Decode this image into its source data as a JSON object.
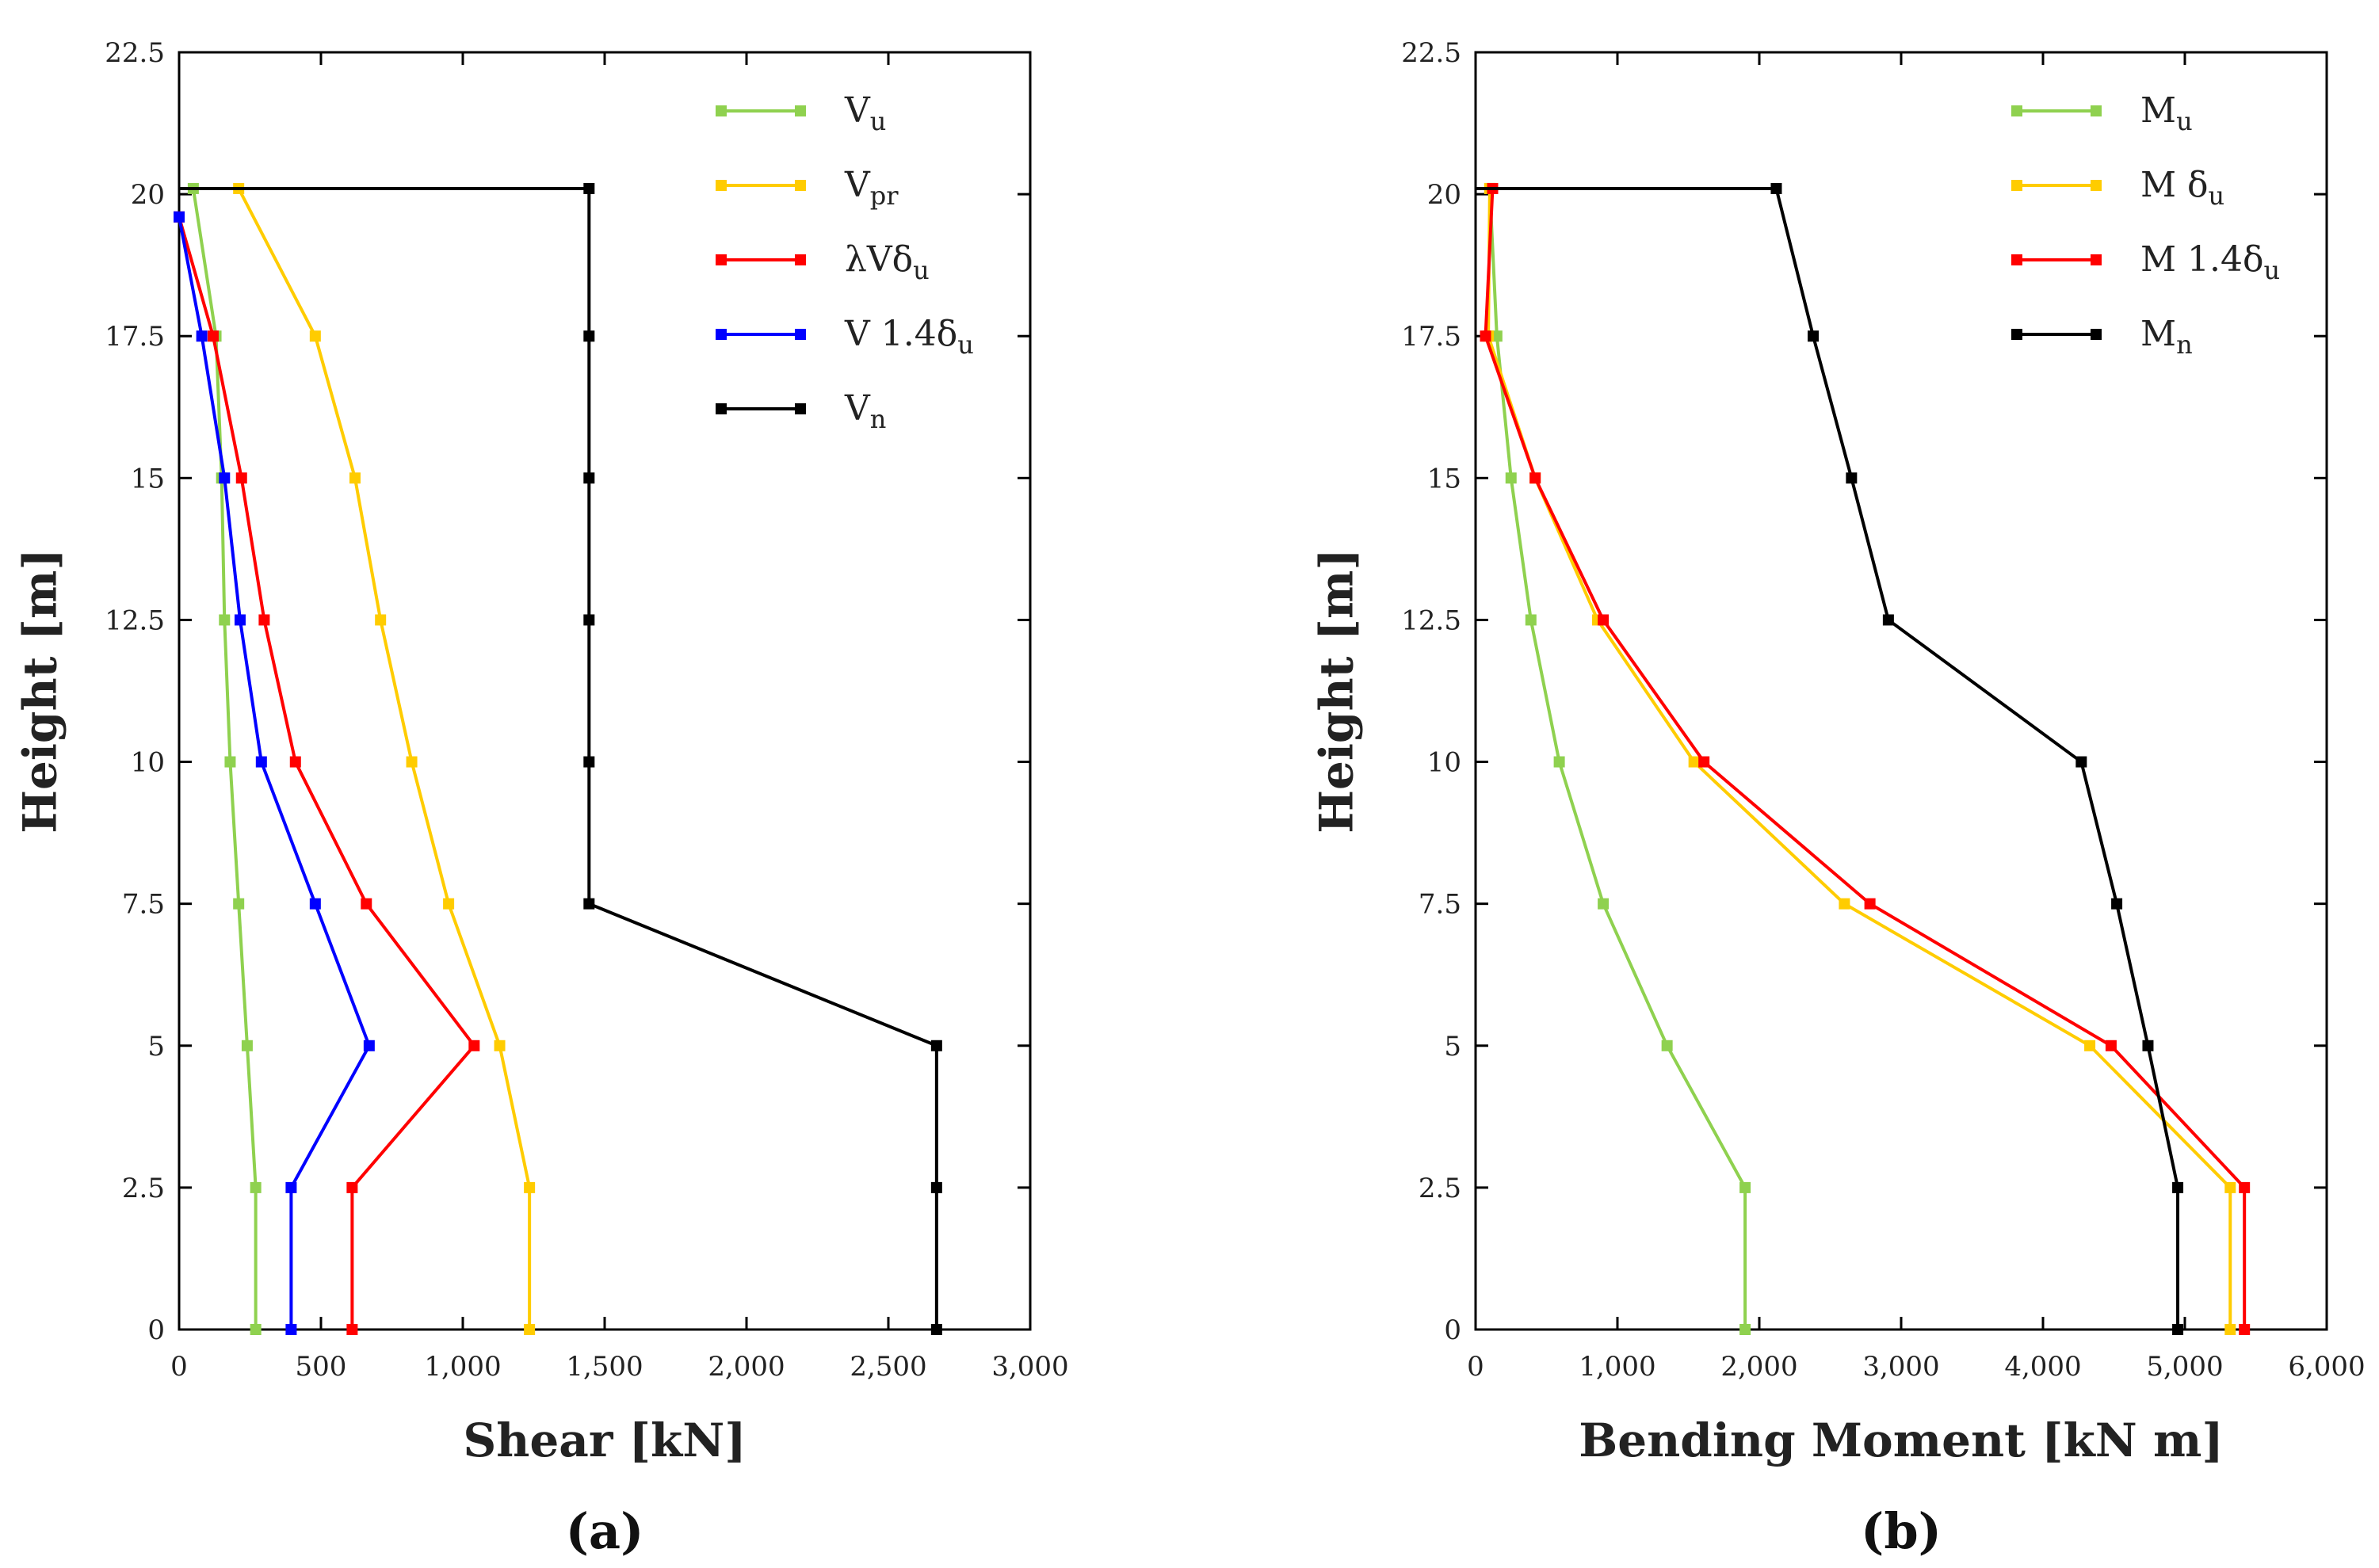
{
  "chart_data": [
    {
      "type": "line",
      "panel_label": "(a)",
      "xlabel": "Shear [kN]",
      "ylabel": "Height [m]",
      "xlim": [
        0,
        3000
      ],
      "ylim": [
        0,
        22.5
      ],
      "xticks": [
        0,
        500,
        1000,
        1500,
        2000,
        2500,
        3000
      ],
      "xtick_labels": [
        "0",
        "500",
        "1,000",
        "1,500",
        "2,000",
        "2,500",
        "3,000"
      ],
      "yticks": [
        0,
        2.5,
        5,
        7.5,
        10,
        12.5,
        15,
        17.5,
        20,
        22.5
      ],
      "ytick_labels": [
        "0",
        "2.5",
        "5",
        "7.5",
        "10",
        "12.5",
        "15",
        "17.5",
        "20",
        "22.5"
      ],
      "legend_position": "top-right",
      "grid": false,
      "series": [
        {
          "name": "Vu",
          "label_main": "V",
          "label_sub": "u",
          "color": "#8fd14f",
          "points": [
            [
              270,
              0
            ],
            [
              270,
              2.5
            ],
            [
              240,
              5
            ],
            [
              210,
              7.5
            ],
            [
              180,
              10
            ],
            [
              160,
              12.5
            ],
            [
              150,
              15
            ],
            [
              130,
              17.5
            ],
            [
              50,
              20.1
            ]
          ]
        },
        {
          "name": "Vpr",
          "label_main": "V",
          "label_sub": "pr",
          "color": "#ffcc00",
          "points": [
            [
              1235,
              0
            ],
            [
              1235,
              2.5
            ],
            [
              1130,
              5
            ],
            [
              950,
              7.5
            ],
            [
              820,
              10
            ],
            [
              710,
              12.5
            ],
            [
              620,
              15
            ],
            [
              480,
              17.5
            ],
            [
              210,
              20.1
            ]
          ]
        },
        {
          "name": "λVδu",
          "label_main": "λVδ",
          "label_sub": "u",
          "color": "#ff0000",
          "points": [
            [
              610,
              0
            ],
            [
              610,
              2.5
            ],
            [
              1040,
              5
            ],
            [
              660,
              7.5
            ],
            [
              410,
              10
            ],
            [
              300,
              12.5
            ],
            [
              220,
              15
            ],
            [
              120,
              17.5
            ],
            [
              0,
              19.6
            ]
          ]
        },
        {
          "name": "V 1.4δu",
          "label_main": "V 1.4δ",
          "label_sub": "u",
          "color": "#0000ff",
          "points": [
            [
              395,
              0
            ],
            [
              395,
              2.5
            ],
            [
              670,
              5
            ],
            [
              480,
              7.5
            ],
            [
              290,
              10
            ],
            [
              215,
              12.5
            ],
            [
              160,
              15
            ],
            [
              80,
              17.5
            ],
            [
              0,
              19.6
            ]
          ]
        },
        {
          "name": "Vn",
          "label_main": "V",
          "label_sub": "n",
          "color": "#000000",
          "points": [
            [
              2670,
              0
            ],
            [
              2670,
              2.5
            ],
            [
              2670,
              5
            ],
            [
              1445,
              7.5
            ],
            [
              1445,
              10
            ],
            [
              1445,
              12.5
            ],
            [
              1445,
              15
            ],
            [
              1445,
              17.5
            ],
            [
              1445,
              20.1
            ]
          ],
          "top_segment": [
            [
              0,
              20.1
            ],
            [
              1445,
              20.1
            ]
          ]
        }
      ]
    },
    {
      "type": "line",
      "panel_label": "(b)",
      "xlabel": "Bending Moment [kN m]",
      "ylabel": "Height [m]",
      "xlim": [
        0,
        6000
      ],
      "ylim": [
        0,
        22.5
      ],
      "xticks": [
        0,
        1000,
        2000,
        3000,
        4000,
        5000,
        6000
      ],
      "xtick_labels": [
        "0",
        "1,000",
        "2,000",
        "3,000",
        "4,000",
        "5,000",
        "6,000"
      ],
      "yticks": [
        0,
        2.5,
        5,
        7.5,
        10,
        12.5,
        15,
        17.5,
        20,
        22.5
      ],
      "ytick_labels": [
        "0",
        "2.5",
        "5",
        "7.5",
        "10",
        "12.5",
        "15",
        "17.5",
        "20",
        "22.5"
      ],
      "legend_position": "top-right",
      "grid": false,
      "series": [
        {
          "name": "Mu",
          "label_main": "M",
          "label_sub": "u",
          "color": "#8fd14f",
          "points": [
            [
              1900,
              0
            ],
            [
              1900,
              2.5
            ],
            [
              1350,
              5
            ],
            [
              900,
              7.5
            ],
            [
              590,
              10
            ],
            [
              390,
              12.5
            ],
            [
              250,
              15
            ],
            [
              150,
              17.5
            ],
            [
              100,
              20.1
            ]
          ]
        },
        {
          "name": "M δu",
          "label_main": "M δ",
          "label_sub": "u",
          "color": "#ffcc00",
          "points": [
            [
              5320,
              0
            ],
            [
              5320,
              2.5
            ],
            [
              4330,
              5
            ],
            [
              2600,
              7.5
            ],
            [
              1540,
              10
            ],
            [
              860,
              12.5
            ],
            [
              420,
              15
            ],
            [
              90,
              17.5
            ],
            [
              100,
              20.1
            ]
          ]
        },
        {
          "name": "M 1.4δu",
          "label_main": "M 1.4δ",
          "label_sub": "u",
          "color": "#ff0000",
          "points": [
            [
              5420,
              0
            ],
            [
              5420,
              2.5
            ],
            [
              4480,
              5
            ],
            [
              2780,
              7.5
            ],
            [
              1610,
              10
            ],
            [
              900,
              12.5
            ],
            [
              420,
              15
            ],
            [
              70,
              17.5
            ],
            [
              120,
              20.1
            ]
          ]
        },
        {
          "name": "Mn",
          "label_main": "M",
          "label_sub": "n",
          "color": "#000000",
          "points": [
            [
              4950,
              0
            ],
            [
              4950,
              2.5
            ],
            [
              4740,
              5
            ],
            [
              4520,
              7.5
            ],
            [
              4270,
              10
            ],
            [
              2910,
              12.5
            ],
            [
              2650,
              15
            ],
            [
              2380,
              17.5
            ],
            [
              2120,
              20.1
            ]
          ],
          "top_segment": [
            [
              0,
              20.1
            ],
            [
              2120,
              20.1
            ]
          ]
        }
      ]
    }
  ]
}
